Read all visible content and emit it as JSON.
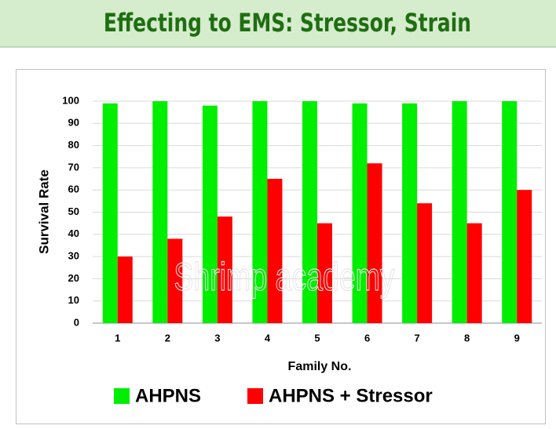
{
  "chart_data": {
    "type": "bar",
    "title": "Effecting to EMS: Stressor, Strain",
    "ylabel": "Survival Rate",
    "xlabel": "Family No.",
    "watermark": "Shrimp academy",
    "categories": [
      "1",
      "2",
      "3",
      "4",
      "5",
      "6",
      "7",
      "8",
      "9"
    ],
    "series": [
      {
        "name": "AHPNS",
        "color": "#00ee00",
        "values": [
          99,
          100,
          98,
          100,
          100,
          99,
          99,
          100,
          100
        ]
      },
      {
        "name": "AHPNS + Stressor",
        "color": "#ff0000",
        "values": [
          30,
          38,
          48,
          65,
          45,
          72,
          54,
          45,
          60
        ]
      }
    ],
    "ylim": [
      0,
      100
    ],
    "yticks": [
      0,
      10,
      20,
      30,
      40,
      50,
      60,
      70,
      80,
      90,
      100
    ],
    "grid": true,
    "legend": "bottom"
  }
}
